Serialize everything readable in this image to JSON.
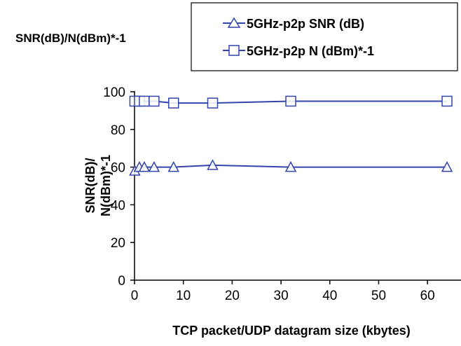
{
  "chart_data": {
    "type": "line",
    "title": "",
    "top_left_label": "SNR(dB)/N(dBm)*-1",
    "xlabel": "TCP packet/UDP datagram size (kbytes)",
    "ylabel_line1": "SNR(dB)/",
    "ylabel_line2": "N(dBm)*-1",
    "xlim": [
      0,
      65
    ],
    "ylim": [
      0,
      100
    ],
    "xticks": [
      0,
      10,
      20,
      30,
      40,
      50,
      60
    ],
    "yticks": [
      0,
      20,
      40,
      60,
      80,
      100
    ],
    "grid": false,
    "legend_position": "top-right",
    "series_color": "#3344aa",
    "series": [
      {
        "name": "5GHz-p2p SNR (dB)",
        "marker": "triangle",
        "x": [
          0.064,
          1,
          2,
          4,
          8,
          16,
          32,
          64
        ],
        "y": [
          58,
          60,
          60,
          60,
          60,
          61,
          60,
          60
        ]
      },
      {
        "name": "5GHz-p2p N (dBm)*-1",
        "marker": "square",
        "x": [
          0.064,
          1,
          2,
          4,
          8,
          16,
          32,
          64
        ],
        "y": [
          95,
          95,
          95,
          95,
          94,
          94,
          95,
          95
        ]
      }
    ]
  }
}
